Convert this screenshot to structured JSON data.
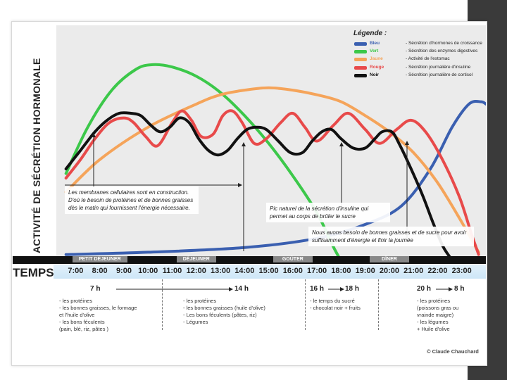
{
  "y_axis_title": "ACTIVITÉ DE SÉCRÉTION HORMONALE",
  "time_axis_title": "TEMPS",
  "legend": {
    "title": "Légende :",
    "items": [
      {
        "name": "Bleu",
        "desc": "- Sécrétion d'hormones de croissance",
        "color": "#3a5fb0"
      },
      {
        "name": "Vert",
        "desc": "- Sécrétion des enzymes digestives",
        "color": "#3cc84a"
      },
      {
        "name": "Jaune",
        "desc": "- Activité de l'estomac",
        "color": "#f5a45a"
      },
      {
        "name": "Rouge",
        "desc": "- Sécrétion journalière d'insuline",
        "color": "#e84a4a"
      },
      {
        "name": "Noir",
        "desc": "- Sécrétion journalière de cortisol",
        "color": "#111111"
      }
    ]
  },
  "meals": [
    {
      "label": "PETIT DÉJEUNER",
      "hour": 8
    },
    {
      "label": "DÉJEUNER",
      "hour": 12
    },
    {
      "label": "GOÛTER",
      "hour": 16
    },
    {
      "label": "DÎNER",
      "hour": 20
    }
  ],
  "notes": {
    "membranes": "Les membranes cellulaires sont en construction. D'où le besoin de protéines et de bonnes graisses dès le matin qui fournissent l'énergie nécessaire.",
    "insulin_peak": "Pic naturel de la sécrétion d'insuline qui permet au corps de brûler le sucre",
    "evening": "Nous avons besoin de bonnes graisses et de sucre pour avoir suffisamment d'énergie et finir la journée"
  },
  "periods": [
    {
      "from": "7 h",
      "to": "14 h",
      "foods": "- les protéines\n- les bonnes graisses, le formage\n  et l'huile d'olive\n- les bons féculents\n  (pain, blé, riz, pâtes )"
    },
    {
      "from": "",
      "to": "",
      "foods": "- les protéines\n- les bonnes graisses (huile d'olive)\n- Les bons féculents (pâtes, riz)\n- Légumes"
    },
    {
      "from": "16 h",
      "to": "18 h",
      "foods": "- le temps du sucré\n- chocolat noir + fruits"
    },
    {
      "from": "20 h",
      "to": "8 h",
      "foods": "- les protéines\n  (poissons gras ou\n  vrainde maigre)\n- les légumes\n  + Huile d'olive"
    }
  ],
  "credit": "© Claude Chauchard",
  "chart_data": {
    "type": "line",
    "x_unit": "hour of day",
    "xlim": [
      6.2,
      24.0
    ],
    "ylim": [
      0,
      100
    ],
    "x_ticks": [
      "7:00",
      "8:00",
      "9:00",
      "10:00",
      "11:00",
      "12:00",
      "13:00",
      "14:00",
      "15:00",
      "16:00",
      "17:00",
      "18:00",
      "19:00",
      "20:00",
      "21:00",
      "22:00",
      "23:00"
    ],
    "tick_hours": [
      7,
      8,
      9,
      10,
      11,
      12,
      13,
      14,
      15,
      16,
      17,
      18,
      19,
      20,
      21,
      22,
      23
    ],
    "series": [
      {
        "name": "Bleu",
        "color": "#3a5fb0",
        "points": [
          [
            6.6,
            1
          ],
          [
            10,
            2
          ],
          [
            14,
            4
          ],
          [
            17,
            8
          ],
          [
            19,
            14
          ],
          [
            20.5,
            22
          ],
          [
            21.7,
            38
          ],
          [
            22.6,
            56
          ],
          [
            23.3,
            66
          ],
          [
            23.8,
            67
          ],
          [
            24.0,
            66
          ]
        ]
      },
      {
        "name": "Vert",
        "color": "#3cc84a",
        "points": [
          [
            6.6,
            36
          ],
          [
            7.5,
            56
          ],
          [
            8.5,
            72
          ],
          [
            9.5,
            81
          ],
          [
            10.2,
            83
          ],
          [
            11,
            82
          ],
          [
            12,
            78
          ],
          [
            13,
            71
          ],
          [
            14,
            61
          ],
          [
            15,
            49
          ],
          [
            16,
            35
          ],
          [
            17,
            19
          ],
          [
            17.6,
            6
          ],
          [
            17.9,
            0
          ]
        ]
      },
      {
        "name": "Jaune",
        "color": "#f5a45a",
        "points": [
          [
            6.6,
            28
          ],
          [
            8,
            42
          ],
          [
            10,
            56
          ],
          [
            12,
            66
          ],
          [
            13,
            70
          ],
          [
            14,
            72
          ],
          [
            15,
            73
          ],
          [
            16,
            72
          ],
          [
            17,
            70
          ],
          [
            18,
            67
          ],
          [
            19,
            61
          ],
          [
            20,
            54
          ],
          [
            21,
            45
          ],
          [
            22,
            32
          ],
          [
            23,
            15
          ],
          [
            23.7,
            2
          ]
        ]
      },
      {
        "name": "Rouge",
        "color": "#e84a4a",
        "points": [
          [
            6.6,
            34
          ],
          [
            7.2,
            42
          ],
          [
            7.8,
            51
          ],
          [
            8.4,
            58
          ],
          [
            9,
            60
          ],
          [
            9.4,
            58
          ],
          [
            9.9,
            52
          ],
          [
            10.4,
            48
          ],
          [
            11,
            58
          ],
          [
            11.4,
            63
          ],
          [
            11.8,
            59
          ],
          [
            12.2,
            52
          ],
          [
            12.7,
            53
          ],
          [
            13.1,
            61
          ],
          [
            13.5,
            63
          ],
          [
            13.9,
            58
          ],
          [
            14.4,
            49
          ],
          [
            14.9,
            51
          ],
          [
            15.5,
            58
          ],
          [
            16,
            62
          ],
          [
            16.5,
            56
          ],
          [
            17,
            50
          ],
          [
            17.7,
            57
          ],
          [
            18.3,
            62
          ],
          [
            19,
            55
          ],
          [
            19.6,
            49
          ],
          [
            20.3,
            55
          ],
          [
            20.9,
            59
          ],
          [
            21.5,
            54
          ],
          [
            22.2,
            42
          ],
          [
            22.9,
            26
          ],
          [
            23.4,
            10
          ],
          [
            23.7,
            1
          ]
        ]
      },
      {
        "name": "Noir",
        "color": "#111111",
        "points": [
          [
            6.6,
            38
          ],
          [
            7.2,
            46
          ],
          [
            7.8,
            54
          ],
          [
            8.3,
            59
          ],
          [
            8.8,
            62
          ],
          [
            9.3,
            62
          ],
          [
            9.7,
            61
          ],
          [
            10.1,
            57
          ],
          [
            10.5,
            54
          ],
          [
            10.9,
            56
          ],
          [
            11.3,
            60
          ],
          [
            11.7,
            58
          ],
          [
            12.1,
            51
          ],
          [
            12.5,
            46
          ],
          [
            12.9,
            44
          ],
          [
            13.3,
            46
          ],
          [
            13.7,
            51
          ],
          [
            14.1,
            55
          ],
          [
            14.5,
            56
          ],
          [
            14.9,
            55
          ],
          [
            15.4,
            50
          ],
          [
            15.9,
            45
          ],
          [
            16.4,
            45
          ],
          [
            16.8,
            50
          ],
          [
            17.2,
            54
          ],
          [
            17.6,
            55
          ],
          [
            18,
            51
          ],
          [
            18.5,
            47
          ],
          [
            19,
            47
          ],
          [
            19.4,
            51
          ],
          [
            19.7,
            54
          ],
          [
            20.1,
            54
          ],
          [
            20.4,
            49
          ],
          [
            20.9,
            38
          ],
          [
            21.4,
            26
          ],
          [
            21.8,
            15
          ],
          [
            22.2,
            5
          ],
          [
            22.5,
            0
          ]
        ]
      }
    ]
  }
}
